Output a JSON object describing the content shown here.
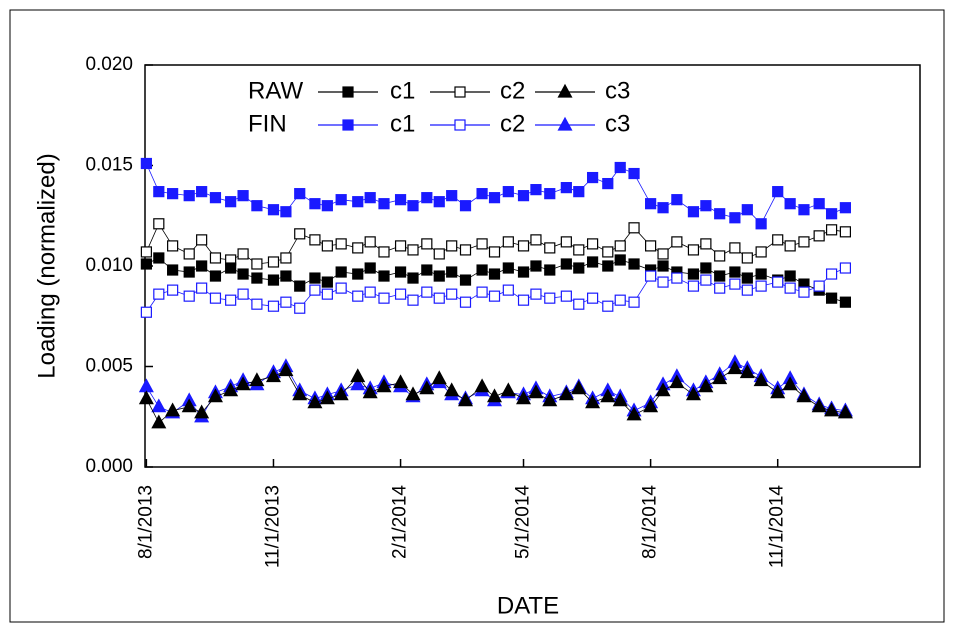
{
  "chart_data": {
    "type": "line",
    "y_label": "Loading (normalized)",
    "x_label": "DATE",
    "x": [
      "8/1/2013",
      "8/10/2013",
      "8/20/2013",
      "9/1/2013",
      "9/10/2013",
      "9/20/2013",
      "10/1/2013",
      "10/10/2013",
      "10/20/2013",
      "11/1/2013",
      "11/10/2013",
      "11/20/2013",
      "12/1/2013",
      "12/10/2013",
      "12/20/2013",
      "1/1/2014",
      "1/10/2014",
      "1/20/2014",
      "2/1/2014",
      "2/10/2014",
      "2/20/2014",
      "3/1/2014",
      "3/10/2014",
      "3/20/2014",
      "4/1/2014",
      "4/10/2014",
      "4/20/2014",
      "5/1/2014",
      "5/10/2014",
      "5/20/2014",
      "6/1/2014",
      "6/10/2014",
      "6/20/2014",
      "7/1/2014",
      "7/10/2014",
      "7/20/2014",
      "8/1/2014",
      "8/10/2014",
      "8/20/2014",
      "9/1/2014",
      "9/10/2014",
      "9/20/2014",
      "10/1/2014",
      "10/10/2014",
      "10/20/2014",
      "11/1/2014",
      "11/10/2014",
      "11/20/2014",
      "12/1/2014",
      "12/10/2014",
      "12/20/2014"
    ],
    "xlim": [
      "7/31/2013",
      "2/12/2015"
    ],
    "xticks": [
      "8/1/2013",
      "11/1/2013",
      "2/1/2014",
      "5/1/2014",
      "8/1/2014",
      "11/1/2014"
    ],
    "ylim": [
      0,
      0.02
    ],
    "yticks": [
      {
        "value": 0,
        "label": "0.000"
      },
      {
        "value": 0.005,
        "label": "0.005"
      },
      {
        "value": 0.01,
        "label": "0.010"
      },
      {
        "value": 0.015,
        "label": "0.015"
      },
      {
        "value": 0.02,
        "label": "0.020"
      }
    ],
    "series_groups": [
      {
        "name": "RAW",
        "series": [
          {
            "name": "c1",
            "color": "#000000",
            "marker": "square",
            "filled": true,
            "values": [
              0.0101,
              0.0104,
              0.0098,
              0.0097,
              0.01,
              0.0095,
              0.0099,
              0.0096,
              0.0094,
              0.0093,
              0.0095,
              0.009,
              0.0094,
              0.0092,
              0.0097,
              0.0096,
              0.0099,
              0.0095,
              0.0097,
              0.0094,
              0.0098,
              0.0095,
              0.0097,
              0.0093,
              0.0098,
              0.0096,
              0.0099,
              0.0097,
              0.01,
              0.0098,
              0.0101,
              0.0099,
              0.0102,
              0.01,
              0.0103,
              0.0101,
              0.0098,
              0.01,
              0.0097,
              0.0096,
              0.0099,
              0.0095,
              0.0097,
              0.0094,
              0.0096,
              0.0093,
              0.0095,
              0.0091,
              0.0088,
              0.0084,
              0.0082
            ]
          },
          {
            "name": "c2",
            "color": "#000000",
            "marker": "square",
            "filled": false,
            "values": [
              0.0107,
              0.0121,
              0.011,
              0.0106,
              0.0113,
              0.0104,
              0.0103,
              0.0106,
              0.0101,
              0.0102,
              0.0104,
              0.0116,
              0.0113,
              0.011,
              0.0111,
              0.0109,
              0.0112,
              0.0107,
              0.011,
              0.0108,
              0.0111,
              0.0106,
              0.011,
              0.0108,
              0.0111,
              0.0107,
              0.0112,
              0.011,
              0.0113,
              0.0109,
              0.0112,
              0.0108,
              0.0111,
              0.0107,
              0.011,
              0.0119,
              0.011,
              0.0106,
              0.0112,
              0.0108,
              0.0111,
              0.0105,
              0.0109,
              0.0104,
              0.0107,
              0.0113,
              0.011,
              0.0112,
              0.0115,
              0.0118,
              0.0117
            ]
          },
          {
            "name": "c3",
            "color": "#000000",
            "marker": "triangle",
            "filled": true,
            "values": [
              0.0034,
              0.0022,
              0.0028,
              0.003,
              0.0027,
              0.0035,
              0.0038,
              0.0041,
              0.0043,
              0.0045,
              0.0048,
              0.0036,
              0.0032,
              0.0034,
              0.0036,
              0.0045,
              0.0037,
              0.004,
              0.0042,
              0.0036,
              0.0039,
              0.0044,
              0.0038,
              0.0033,
              0.004,
              0.0035,
              0.0038,
              0.0034,
              0.0037,
              0.0033,
              0.0036,
              0.0039,
              0.0032,
              0.0035,
              0.0033,
              0.0026,
              0.003,
              0.0038,
              0.0042,
              0.0036,
              0.004,
              0.0044,
              0.0049,
              0.0047,
              0.0043,
              0.0037,
              0.0041,
              0.0035,
              0.003,
              0.0028,
              0.0027
            ]
          }
        ]
      },
      {
        "name": "FIN",
        "series": [
          {
            "name": "c1",
            "color": "#1a1aff",
            "marker": "square",
            "filled": true,
            "values": [
              0.0151,
              0.0137,
              0.0136,
              0.0135,
              0.0137,
              0.0134,
              0.0132,
              0.0135,
              0.013,
              0.0128,
              0.0127,
              0.0136,
              0.0131,
              0.013,
              0.0133,
              0.0132,
              0.0134,
              0.0131,
              0.0133,
              0.013,
              0.0134,
              0.0132,
              0.0135,
              0.013,
              0.0136,
              0.0134,
              0.0137,
              0.0135,
              0.0138,
              0.0136,
              0.0139,
              0.0137,
              0.0144,
              0.0141,
              0.0149,
              0.0146,
              0.0131,
              0.0129,
              0.0133,
              0.0127,
              0.013,
              0.0126,
              0.0124,
              0.0128,
              0.0121,
              0.0137,
              0.0131,
              0.0128,
              0.0131,
              0.0126,
              0.0129
            ]
          },
          {
            "name": "c2",
            "color": "#1a1aff",
            "marker": "square",
            "filled": false,
            "values": [
              0.0077,
              0.0086,
              0.0088,
              0.0085,
              0.0089,
              0.0084,
              0.0083,
              0.0086,
              0.0081,
              0.008,
              0.0082,
              0.0079,
              0.0088,
              0.0086,
              0.0089,
              0.0085,
              0.0087,
              0.0084,
              0.0086,
              0.0083,
              0.0087,
              0.0084,
              0.0086,
              0.0082,
              0.0087,
              0.0085,
              0.0088,
              0.0083,
              0.0086,
              0.0084,
              0.0085,
              0.0081,
              0.0084,
              0.008,
              0.0083,
              0.0082,
              0.0095,
              0.0092,
              0.0094,
              0.009,
              0.0093,
              0.0089,
              0.0091,
              0.0088,
              0.009,
              0.0092,
              0.0089,
              0.0087,
              0.009,
              0.0096,
              0.0099
            ]
          },
          {
            "name": "c3",
            "color": "#1a1aff",
            "marker": "triangle",
            "filled": true,
            "values": [
              0.004,
              0.003,
              0.0027,
              0.0033,
              0.0025,
              0.0037,
              0.004,
              0.0043,
              0.0041,
              0.0047,
              0.005,
              0.0038,
              0.0034,
              0.0036,
              0.0038,
              0.0041,
              0.0039,
              0.0042,
              0.004,
              0.0035,
              0.0041,
              0.0042,
              0.0036,
              0.0034,
              0.0038,
              0.0033,
              0.0037,
              0.0036,
              0.0039,
              0.0035,
              0.0037,
              0.004,
              0.0034,
              0.0038,
              0.0035,
              0.0028,
              0.0032,
              0.0041,
              0.0045,
              0.0038,
              0.0042,
              0.0046,
              0.0052,
              0.0049,
              0.0045,
              0.0039,
              0.0044,
              0.0036,
              0.0031,
              0.0029,
              0.0028
            ]
          }
        ]
      }
    ]
  }
}
